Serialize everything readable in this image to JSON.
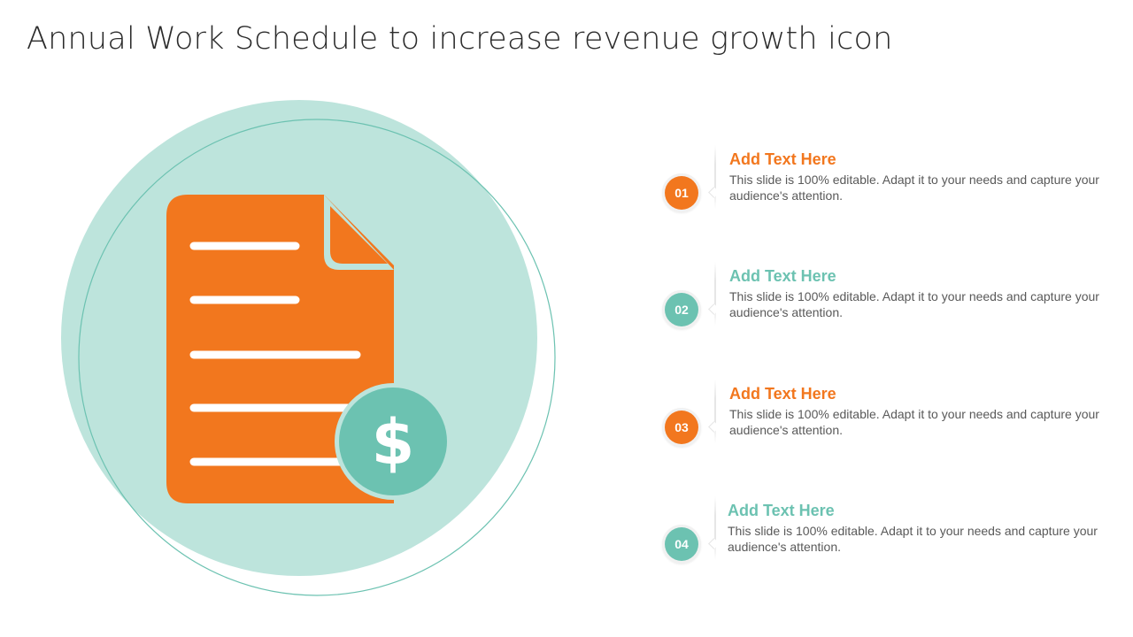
{
  "slide": {
    "title": "Annual Work Schedule to increase revenue growth icon"
  },
  "colors": {
    "orange": "#f2771e",
    "teal": "#6cc2b1",
    "teal_light": "#bde4dc",
    "body_text": "#595959",
    "title_text": "#2b2b2b"
  },
  "illustration": {
    "icon_name": "document-dollar-icon",
    "currency_symbol": "$"
  },
  "items": [
    {
      "number": "01",
      "heading": "Add Text Here",
      "body": "This slide is 100% editable. Adapt it to your needs and capture your audience's attention.",
      "color": "#f2771e"
    },
    {
      "number": "02",
      "heading": "Add Text Here",
      "body": "This slide is 100% editable. Adapt it to your needs and capture your audience's attention.",
      "color": "#6cc2b1"
    },
    {
      "number": "03",
      "heading": "Add Text Here",
      "body": "This slide is 100% editable. Adapt it to your needs and capture your audience's attention.",
      "color": "#f2771e"
    },
    {
      "number": "04",
      "heading": "Add Text Here",
      "body": "This slide is 100% editable. Adapt it to your needs and capture your audience's attention.",
      "color": "#6cc2b1"
    }
  ]
}
